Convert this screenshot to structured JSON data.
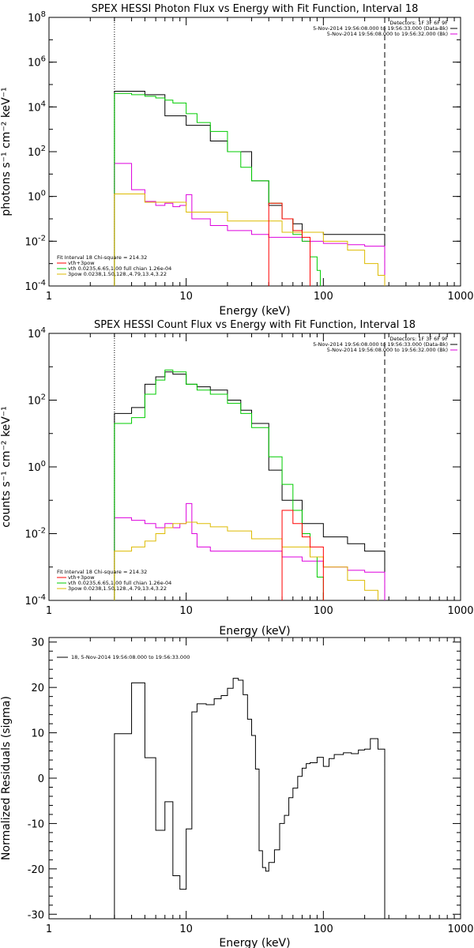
{
  "colors": {
    "axis": "#000000",
    "black": "#000000",
    "magenta": "#dd00dd",
    "green": "#00cc00",
    "yellow": "#ddbb00",
    "red": "#ff0000"
  },
  "chart_data": [
    {
      "type": "line",
      "id": "photon",
      "title": "SPEX HESSI Photon Flux vs Energy with Fit Function, Interval 18",
      "xlabel": "Energy (keV)",
      "ylabel": "photons s⁻¹ cm⁻² keV⁻¹",
      "x_scale": "log",
      "y_scale": "log",
      "xlim": [
        1,
        1000
      ],
      "ylim": [
        0.0001,
        100000000
      ],
      "x_ticks": [
        "1",
        "10",
        "100",
        "1000"
      ],
      "y_ticks": [
        {
          "base": "10",
          "exp": "-4"
        },
        {
          "base": "10",
          "exp": "-2"
        },
        {
          "base": "10",
          "exp": "0"
        },
        {
          "base": "10",
          "exp": "2"
        },
        {
          "base": "10",
          "exp": "4"
        },
        {
          "base": "10",
          "exp": "6"
        },
        {
          "base": "10",
          "exp": "8"
        }
      ],
      "vlines": [
        {
          "x": 3,
          "style": "dotted"
        },
        {
          "x": 280,
          "style": "dashed"
        }
      ],
      "legend_top": {
        "header": "Detectors: 1F 3F 6F 9F",
        "entries": [
          {
            "text": "5-Nov-2014 19:56:08.000 to 19:56:33.000 (Data-Bk)",
            "color": "black"
          },
          {
            "text": "5-Nov-2014 19:56:08.000 to 19:56:32.000 (Bk)",
            "color": "magenta"
          }
        ]
      },
      "legend_bottom": {
        "header": "Fit Interval 18   Chi-square = 214.32",
        "entries": [
          {
            "text": "vth+3pow",
            "color": "red"
          },
          {
            "text": "vth 0.0235,6.65,1.00  full chian 1.26e-04",
            "color": "green"
          },
          {
            "text": "3pow 0.0238,1.50,128.,4.79,13.4,3.22",
            "color": "yellow"
          }
        ]
      },
      "series": [
        {
          "name": "5-Nov-2014 19:56:08.000 to 19:56:33.000 (Data-Bk)",
          "color": "black",
          "x": [
            3,
            5,
            7,
            10,
            15,
            20,
            30,
            40,
            50,
            60,
            70,
            100,
            150,
            200,
            280
          ],
          "y": [
            50000,
            35000,
            4000,
            1500,
            300,
            100,
            5,
            0.4,
            0.1,
            0.06,
            0.025,
            0.02,
            0.02,
            0.02,
            0.015
          ]
        },
        {
          "name": "5-Nov-2014 19:56:08.000 to 19:56:32.000 (Bk)",
          "color": "magenta",
          "x": [
            3,
            4,
            5,
            6,
            7,
            8,
            9,
            10,
            11,
            15,
            20,
            30,
            40,
            50,
            70,
            100,
            150,
            200,
            280
          ],
          "y": [
            30,
            2,
            0.6,
            0.4,
            0.5,
            0.35,
            0.4,
            1.2,
            0.1,
            0.05,
            0.03,
            0.02,
            0.015,
            0.015,
            0.01,
            0.008,
            0.007,
            0.006,
            0.005
          ]
        },
        {
          "name": "vth 0.0235,6.65,1.00  full chian 1.26e-04",
          "color": "green",
          "x": [
            3,
            4,
            5,
            6,
            7,
            8,
            10,
            12,
            15,
            20,
            25,
            30,
            40,
            50,
            60,
            70,
            80,
            90,
            95
          ],
          "y": [
            40000,
            35000,
            30000,
            25000,
            20000,
            15000,
            5000,
            2000,
            800,
            100,
            20,
            5,
            0.5,
            0.1,
            0.02,
            0.01,
            0.002,
            0.0005,
            0.0001
          ]
        },
        {
          "name": "3pow 0.0238,1.50,128.,4.79,13.4,3.22",
          "color": "yellow",
          "x": [
            3,
            5,
            10,
            20,
            50,
            100,
            150,
            200,
            250,
            280
          ],
          "y": [
            1.3,
            0.55,
            0.2,
            0.08,
            0.025,
            0.01,
            0.004,
            0.001,
            0.0003,
            0.0001
          ]
        },
        {
          "name": "vth+3pow",
          "color": "red",
          "x": [
            40,
            50,
            60,
            70,
            80
          ],
          "y": [
            0.5,
            0.1,
            0.03,
            0.015,
            0.01
          ]
        }
      ]
    },
    {
      "type": "line",
      "id": "count",
      "title": "SPEX HESSI Count Flux vs Energy with Fit Function, Interval 18",
      "xlabel": "Energy (keV)",
      "ylabel": "counts s⁻¹ cm⁻² keV⁻¹",
      "x_scale": "log",
      "y_scale": "log",
      "xlim": [
        1,
        1000
      ],
      "ylim": [
        0.0001,
        10000
      ],
      "x_ticks": [
        "1",
        "10",
        "100",
        "1000"
      ],
      "y_ticks": [
        {
          "base": "10",
          "exp": "-4"
        },
        {
          "base": "10",
          "exp": "-2"
        },
        {
          "base": "10",
          "exp": "0"
        },
        {
          "base": "10",
          "exp": "2"
        },
        {
          "base": "10",
          "exp": "4"
        }
      ],
      "vlines": [
        {
          "x": 3,
          "style": "dotted"
        },
        {
          "x": 280,
          "style": "dashed"
        }
      ],
      "legend_top": {
        "header": "Detectors: 1F 3F 6F 9F",
        "entries": [
          {
            "text": "5-Nov-2014 19:56:08.000 to 19:56:33.000 (Data-Bk)",
            "color": "black"
          },
          {
            "text": "5-Nov-2014 19:56:08.000 to 19:56:32.000 (Bk)",
            "color": "magenta"
          }
        ]
      },
      "legend_bottom": {
        "header": "Fit Interval 18   Chi-square = 214.32",
        "entries": [
          {
            "text": "vth+3pow",
            "color": "red"
          },
          {
            "text": "vth 0.0235,6.65,1.00  full chian 1.26e-04",
            "color": "green"
          },
          {
            "text": "3pow 0.0238,1.50,128.,4.79,13.4,3.22",
            "color": "yellow"
          }
        ]
      },
      "series": [
        {
          "name": "5-Nov-2014 19:56:08.000 to 19:56:33.000 (Data-Bk)",
          "color": "black",
          "x": [
            3,
            4,
            5,
            6,
            7,
            8,
            10,
            12,
            15,
            20,
            25,
            30,
            40,
            50,
            70,
            100,
            150,
            200,
            280
          ],
          "y": [
            40,
            60,
            300,
            500,
            700,
            600,
            300,
            250,
            200,
            100,
            50,
            20,
            0.8,
            0.1,
            0.02,
            0.008,
            0.005,
            0.003,
            0.002
          ]
        },
        {
          "name": "5-Nov-2014 19:56:08.000 to 19:56:32.000 (Bk)",
          "color": "magenta",
          "x": [
            3,
            4,
            5,
            6,
            7,
            8,
            9,
            10,
            11,
            12,
            15,
            20,
            30,
            50,
            70,
            100,
            150,
            200,
            280
          ],
          "y": [
            0.03,
            0.025,
            0.02,
            0.015,
            0.02,
            0.015,
            0.02,
            0.08,
            0.01,
            0.004,
            0.003,
            0.003,
            0.003,
            0.002,
            0.0015,
            0.001,
            0.0008,
            0.0007,
            0.0006
          ]
        },
        {
          "name": "vth 0.0235,6.65,1.00  full chian 1.26e-04",
          "color": "green",
          "x": [
            3,
            4,
            5,
            6,
            7,
            8,
            10,
            12,
            15,
            20,
            25,
            30,
            40,
            50,
            60,
            70,
            80,
            90,
            100
          ],
          "y": [
            20,
            30,
            150,
            400,
            800,
            700,
            300,
            200,
            150,
            80,
            40,
            15,
            2,
            0.3,
            0.05,
            0.01,
            0.002,
            0.0005,
            0.0001
          ]
        },
        {
          "name": "3pow 0.0238,1.50,128.,4.79,13.4,3.22",
          "color": "yellow",
          "x": [
            3,
            4,
            5,
            6,
            7,
            8,
            10,
            12,
            15,
            20,
            30,
            50,
            80,
            100,
            150,
            200,
            250
          ],
          "y": [
            0.003,
            0.004,
            0.006,
            0.01,
            0.015,
            0.02,
            0.022,
            0.02,
            0.016,
            0.012,
            0.007,
            0.004,
            0.002,
            0.001,
            0.0004,
            0.0002,
            0.0001
          ]
        },
        {
          "name": "vth+3pow",
          "color": "red",
          "x": [
            50,
            60,
            70,
            80,
            100
          ],
          "y": [
            0.05,
            0.02,
            0.008,
            0.004,
            0.002
          ]
        }
      ]
    },
    {
      "type": "line",
      "id": "residuals",
      "title": "",
      "xlabel": "Energy (keV)",
      "ylabel": "Normalized Residuals (sigma)",
      "x_scale": "log",
      "y_scale": "linear",
      "xlim": [
        1,
        1000
      ],
      "ylim": [
        -31,
        31
      ],
      "x_ticks": [
        "1",
        "10",
        "100",
        "1000"
      ],
      "y_ticks": [
        "-30",
        "-20",
        "-10",
        "0",
        "10",
        "20",
        "30"
      ],
      "legend": {
        "entries": [
          {
            "text": "18,  5-Nov-2014 19:56:08.000 to 19:56:33.000",
            "color": "black"
          }
        ]
      },
      "series": [
        {
          "name": "18,  5-Nov-2014 19:56:08.000 to 19:56:33.000",
          "color": "black",
          "x": [
            3,
            4,
            5,
            6,
            7,
            8,
            9,
            10,
            11,
            12,
            14,
            16,
            18,
            20,
            22,
            24,
            26,
            28,
            30,
            32,
            34,
            36,
            38,
            40,
            44,
            48,
            52,
            56,
            60,
            65,
            70,
            75,
            80,
            90,
            100,
            110,
            120,
            140,
            160,
            180,
            200,
            220,
            250,
            280
          ],
          "y": [
            9.8,
            21,
            4.5,
            -11.5,
            -5.2,
            -21.5,
            -24.5,
            -11.2,
            14.6,
            16.4,
            16.2,
            17.5,
            18.2,
            19.8,
            22,
            21.6,
            18.4,
            13,
            9.4,
            2,
            -16,
            -19.7,
            -20.5,
            -18.6,
            -15.8,
            -10,
            -8.2,
            -4.3,
            -2.2,
            0.4,
            2.2,
            3.2,
            3.4,
            4.6,
            2.6,
            4.3,
            5.2,
            5.6,
            5.4,
            6.2,
            6.4,
            8.7,
            6.4,
            6.4
          ]
        }
      ]
    }
  ]
}
